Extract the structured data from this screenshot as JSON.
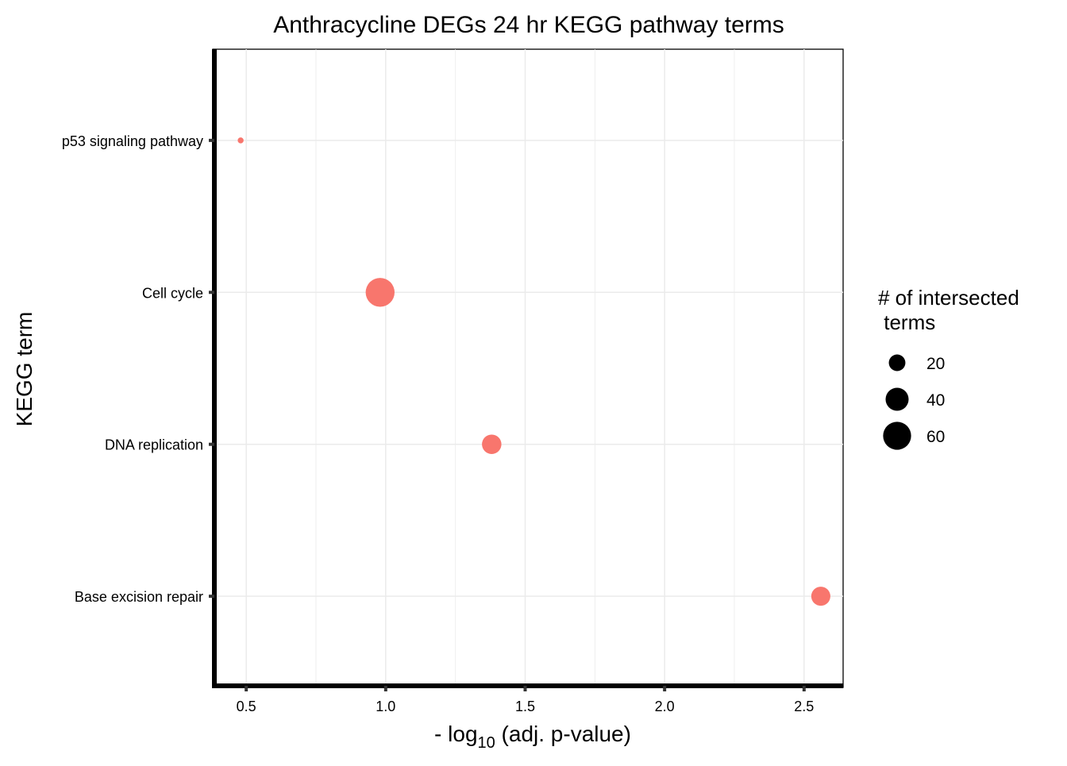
{
  "chart_data": {
    "type": "scatter",
    "title": "Anthracycline DEGs 24 hr KEGG pathway terms",
    "xlabel": {
      "prefix": "- log",
      "subscript": "10",
      "suffix": " (adj. p-value)"
    },
    "ylabel": "KEGG term",
    "xlim": [
      0.38,
      2.64
    ],
    "x_ticks": [
      0.5,
      1.0,
      1.5,
      2.0,
      2.5
    ],
    "x_tick_labels": [
      "0.5",
      "1.0",
      "1.5",
      "2.0",
      "2.5"
    ],
    "categories": [
      "p53 signaling pathway",
      "Cell cycle",
      "DNA replication",
      "Base excision repair"
    ],
    "points": [
      {
        "term": "p53 signaling pathway",
        "x": 0.48,
        "size": 2
      },
      {
        "term": "Cell cycle",
        "x": 0.98,
        "size": 64
      },
      {
        "term": "DNA replication",
        "x": 1.38,
        "size": 28
      },
      {
        "term": "Base excision repair",
        "x": 2.56,
        "size": 27
      }
    ],
    "point_color": "#F8766D",
    "grid": true,
    "legend": {
      "title_lines": [
        "# of intersected",
        " terms"
      ],
      "position": "right",
      "values": [
        20,
        40,
        60
      ]
    }
  }
}
